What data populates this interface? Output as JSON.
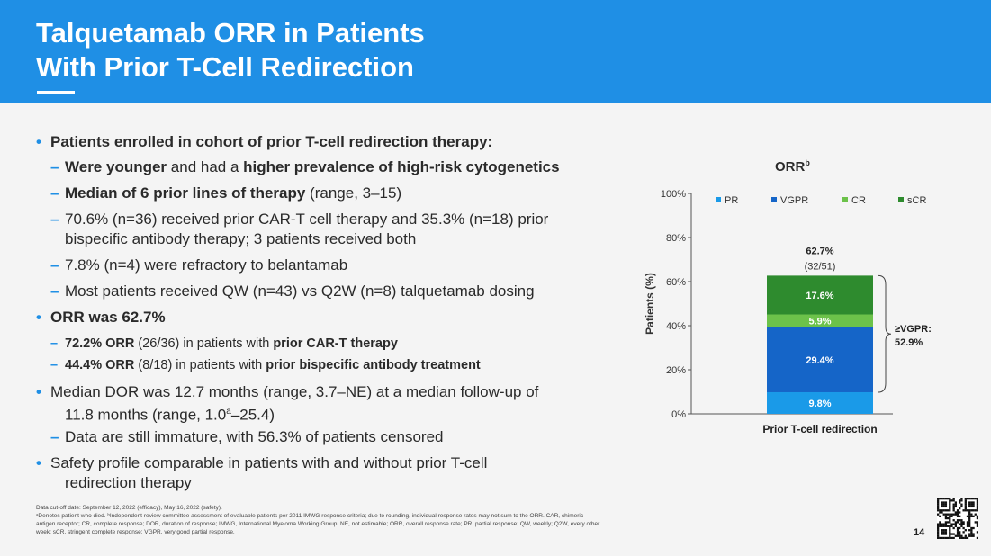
{
  "header": {
    "title_line1": "Talquetamab ORR in Patients",
    "title_line2": "With Prior T-Cell Redirection"
  },
  "bullets": [
    {
      "level": 1,
      "parts": [
        {
          "t": "Patients enrolled in cohort of prior T-cell redirection therapy:",
          "b": true
        }
      ]
    },
    {
      "level": 2,
      "parts": [
        {
          "t": "Were younger",
          "b": true
        },
        {
          "t": " and had a "
        },
        {
          "t": "higher prevalence of high-risk cytogenetics",
          "b": true
        }
      ]
    },
    {
      "level": 2,
      "parts": [
        {
          "t": "Median of 6 prior lines of therapy",
          "b": true
        },
        {
          "t": " (range, 3–15)"
        }
      ]
    },
    {
      "level": 2,
      "parts": [
        {
          "t": "70.6% (n=36) received prior CAR-T cell therapy and 35.3% (n=18) prior"
        }
      ]
    },
    {
      "level": 0,
      "parts": [
        {
          "t": "bispecific antibody therapy; 3 patients received both"
        }
      ]
    },
    {
      "level": 2,
      "parts": [
        {
          "t": "7.8% (n=4) were refractory to belantamab"
        }
      ]
    },
    {
      "level": 2,
      "parts": [
        {
          "t": "Most patients received QW (n=43) vs Q2W (n=8) talquetamab dosing"
        }
      ]
    },
    {
      "level": 1,
      "parts": [
        {
          "t": "ORR was 62.7%",
          "b": true
        }
      ]
    },
    {
      "level": 3,
      "parts": [
        {
          "t": "72.2% ORR",
          "b": true
        },
        {
          "t": " (26/36) in patients with "
        },
        {
          "t": "prior CAR-T therapy",
          "b": true
        }
      ]
    },
    {
      "level": 3,
      "parts": [
        {
          "t": "44.4% ORR",
          "b": true
        },
        {
          "t": " (8/18) in patients with "
        },
        {
          "t": "prior bispecific antibody treatment",
          "b": true
        }
      ]
    },
    {
      "level": 1,
      "parts": [
        {
          "t": "Median DOR was 12.7 months (range, 3.7–NE) at a median follow-up of"
        }
      ]
    },
    {
      "level": 0,
      "parts": [
        {
          "t": "11.8 months (range, 1.0"
        },
        {
          "t": "a",
          "sup": true
        },
        {
          "t": "–25.4)"
        }
      ]
    },
    {
      "level": 2,
      "parts": [
        {
          "t": "Data are still immature, with 56.3% of patients censored"
        }
      ]
    },
    {
      "level": 1,
      "parts": [
        {
          "t": "Safety profile comparable in patients with and without prior T-cell"
        }
      ]
    },
    {
      "level": 0,
      "parts": [
        {
          "t": "redirection therapy"
        }
      ]
    }
  ],
  "footnotes": {
    "line1": "Data cut-off date: September 12, 2022 (efficacy), May 16, 2022 (safety).",
    "line2": "ᵃDenotes patient who died. ᵇIndependent review committee assessment of evaluable patients per 2011 IMWG response criteria; due to rounding, individual response rates may not sum to the ORR. CAR, chimeric",
    "line3": "antigen receptor; CR, complete response; DOR, duration of response; IMWG, International Myeloma Working Group; NE, not estimable; ORR, overall response rate; PR, partial response; QW, weekly; Q2W, every other",
    "line4": "week; sCR, stringent complete response; VGPR, very good partial response."
  },
  "page_number": "14",
  "chart_data": {
    "type": "bar",
    "stacked": true,
    "title": "ORR",
    "title_sup": "b",
    "ylabel": "Patients (%)",
    "ylim": [
      0,
      100
    ],
    "yticks": [
      "0%",
      "20%",
      "40%",
      "60%",
      "80%",
      "100%"
    ],
    "categories": [
      "Prior T-cell redirection"
    ],
    "series": [
      {
        "name": "PR",
        "values": [
          9.8
        ],
        "label": "9.8%",
        "color": "#1a9ae8"
      },
      {
        "name": "VGPR",
        "values": [
          29.4
        ],
        "label": "29.4%",
        "color": "#1565c8"
      },
      {
        "name": "CR",
        "values": [
          5.9
        ],
        "label": "5.9%",
        "color": "#6cc24a"
      },
      {
        "name": "sCR",
        "values": [
          17.6
        ],
        "label": "17.6%",
        "color": "#2e8b2e"
      }
    ],
    "total_label": "62.7%",
    "total_sublabel": "(32/51)",
    "bracket_label_line1": "≥VGPR:",
    "bracket_label_line2": "52.9%",
    "legend_position": "top"
  }
}
